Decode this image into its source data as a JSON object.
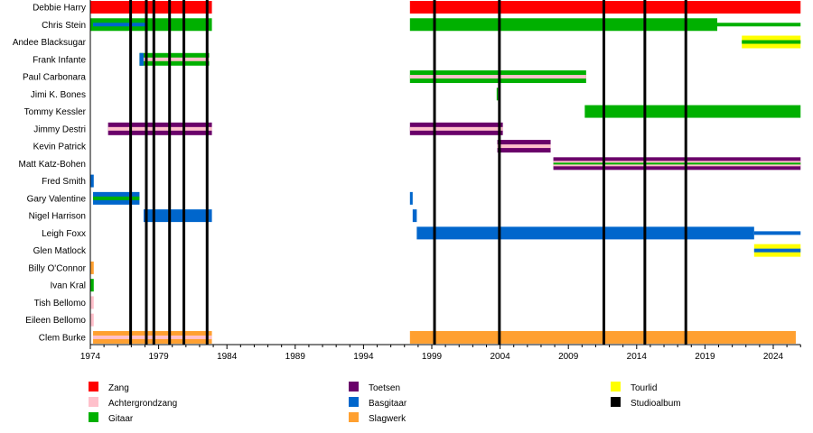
{
  "chart_data": {
    "type": "timeline",
    "title": "",
    "xlim": [
      1974,
      2026
    ],
    "x_ticks": [
      1974,
      1979,
      1984,
      1989,
      1994,
      1999,
      2004,
      2009,
      2014,
      2019,
      2024
    ],
    "roles": {
      "Zang": "#ff0000",
      "Achtergrondzang": "#ffc0cb",
      "Gitaar": "#00b000",
      "Toetsen": "#6a006a",
      "Basgitaar": "#0066cc",
      "Slagwerk": "#ffa030",
      "Tourlid": "#ffff00",
      "Studioalbum": "#000000"
    },
    "legend": [
      [
        "Zang",
        "Achtergrondzang",
        "Gitaar"
      ],
      [
        "Toetsen",
        "Basgitaar",
        "Slagwerk"
      ],
      [
        "Tourlid",
        "Studioalbum"
      ]
    ],
    "legend_placement": "bottom",
    "studio_albums": [
      1976.95,
      1978.1,
      1978.65,
      1979.8,
      1980.85,
      1982.55,
      1999.2,
      2003.95,
      2011.6,
      2014.6,
      2017.6
    ],
    "members": [
      {
        "name": "Debbie Harry",
        "periods": [
          {
            "from": 1974,
            "to": 1982.9,
            "role": "Zang"
          },
          {
            "from": 1997.4,
            "to": 2026,
            "role": "Zang"
          }
        ]
      },
      {
        "name": "Chris Stein",
        "periods": [
          {
            "from": 1974,
            "to": 1982.9,
            "role": "Gitaar"
          },
          {
            "from": 1974.2,
            "to": 1978,
            "role": "Basgitaar",
            "band": "inner"
          },
          {
            "from": 1997.4,
            "to": 2019.9,
            "role": "Gitaar"
          },
          {
            "from": 2019.9,
            "to": 2026,
            "role": "Gitaar",
            "band": "thin"
          }
        ]
      },
      {
        "name": "Andee Blacksugar",
        "periods": [
          {
            "from": 2021.7,
            "to": 2026,
            "role": "Tourlid"
          },
          {
            "from": 2021.7,
            "to": 2026,
            "role": "Gitaar",
            "band": "inner"
          }
        ]
      },
      {
        "name": "Frank Infante",
        "periods": [
          {
            "from": 1977.6,
            "to": 1982.7,
            "role": "Gitaar"
          },
          {
            "from": 1977.6,
            "to": 1982.7,
            "role": "Achtergrondzang",
            "band": "inner"
          },
          {
            "from": 1977.6,
            "to": 1977.9,
            "role": "Basgitaar"
          }
        ]
      },
      {
        "name": "Paul Carbonara",
        "periods": [
          {
            "from": 1997.4,
            "to": 2010.3,
            "role": "Gitaar"
          },
          {
            "from": 1997.4,
            "to": 2010.3,
            "role": "Achtergrondzang",
            "band": "inner"
          }
        ]
      },
      {
        "name": "Jimi K. Bones",
        "periods": [
          {
            "from": 2003.75,
            "to": 2003.85,
            "role": "Gitaar"
          }
        ]
      },
      {
        "name": "Tommy Kessler",
        "periods": [
          {
            "from": 2010.2,
            "to": 2026,
            "role": "Gitaar"
          }
        ]
      },
      {
        "name": "Jimmy Destri",
        "periods": [
          {
            "from": 1975.3,
            "to": 1982.9,
            "role": "Toetsen"
          },
          {
            "from": 1975.3,
            "to": 1982.9,
            "role": "Achtergrondzang",
            "band": "inner"
          },
          {
            "from": 1997.4,
            "to": 2004.2,
            "role": "Toetsen"
          },
          {
            "from": 1997.4,
            "to": 2004.2,
            "role": "Achtergrondzang",
            "band": "inner"
          }
        ]
      },
      {
        "name": "Kevin Patrick",
        "periods": [
          {
            "from": 2003.8,
            "to": 2007.7,
            "role": "Toetsen"
          },
          {
            "from": 2003.8,
            "to": 2007.7,
            "role": "Achtergrondzang",
            "band": "inner"
          }
        ]
      },
      {
        "name": "Matt Katz-Bohen",
        "periods": [
          {
            "from": 2007.9,
            "to": 2026,
            "role": "Toetsen"
          },
          {
            "from": 2007.9,
            "to": 2026,
            "role": "Achtergrondzang",
            "band": "mid"
          },
          {
            "from": 2007.9,
            "to": 2026,
            "role": "Gitaar",
            "band": "center"
          }
        ]
      },
      {
        "name": "Fred Smith",
        "periods": [
          {
            "from": 1974,
            "to": 1974.25,
            "role": "Basgitaar"
          }
        ]
      },
      {
        "name": "Gary Valentine",
        "periods": [
          {
            "from": 1974.2,
            "to": 1977.6,
            "role": "Basgitaar"
          },
          {
            "from": 1974.2,
            "to": 1977.6,
            "role": "Gitaar",
            "band": "inner"
          },
          {
            "from": 1997.4,
            "to": 1997.6,
            "role": "Basgitaar"
          }
        ]
      },
      {
        "name": "Nigel Harrison",
        "periods": [
          {
            "from": 1977.9,
            "to": 1982.9,
            "role": "Basgitaar"
          },
          {
            "from": 1997.6,
            "to": 1997.9,
            "role": "Basgitaar"
          }
        ]
      },
      {
        "name": "Leigh Foxx",
        "periods": [
          {
            "from": 1997.9,
            "to": 2022.6,
            "role": "Basgitaar"
          },
          {
            "from": 2022.6,
            "to": 2026,
            "role": "Basgitaar",
            "band": "thin"
          }
        ]
      },
      {
        "name": "Glen Matlock",
        "periods": [
          {
            "from": 2022.6,
            "to": 2026,
            "role": "Tourlid"
          },
          {
            "from": 2022.6,
            "to": 2026,
            "role": "Basgitaar",
            "band": "inner"
          }
        ]
      },
      {
        "name": "Billy O'Connor",
        "periods": [
          {
            "from": 1974,
            "to": 1974.25,
            "role": "Slagwerk"
          }
        ]
      },
      {
        "name": "Ivan Kral",
        "periods": [
          {
            "from": 1974,
            "to": 1974.25,
            "role": "Gitaar"
          }
        ]
      },
      {
        "name": "Tish Bellomo",
        "periods": [
          {
            "from": 1974,
            "to": 1974.25,
            "role": "Achtergrondzang"
          }
        ]
      },
      {
        "name": "Eileen Bellomo",
        "periods": [
          {
            "from": 1974,
            "to": 1974.25,
            "role": "Achtergrondzang"
          }
        ]
      },
      {
        "name": "Clem Burke",
        "periods": [
          {
            "from": 1974.2,
            "to": 1982.9,
            "role": "Slagwerk"
          },
          {
            "from": 1974.2,
            "to": 1982.9,
            "role": "Achtergrondzang",
            "band": "inner"
          },
          {
            "from": 1997.4,
            "to": 2025.65,
            "role": "Slagwerk"
          }
        ]
      }
    ]
  }
}
